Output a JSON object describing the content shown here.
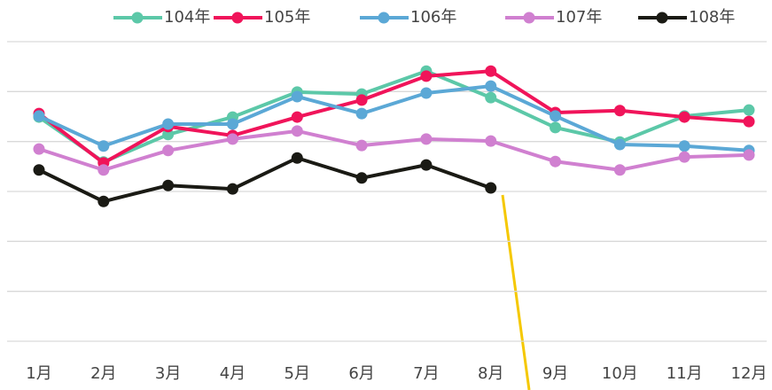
{
  "chart_data": {
    "type": "line",
    "categories": [
      "1月",
      "2月",
      "3月",
      "4月",
      "5月",
      "6月",
      "7月",
      "8月",
      "9月",
      "10月",
      "11月",
      "12月"
    ],
    "series": [
      {
        "name": "104年",
        "color": "#5cc8a8",
        "values": [
          4.49,
          3.59,
          4.14,
          4.49,
          4.99,
          4.95,
          5.41,
          4.88,
          4.28,
          3.99,
          4.51,
          4.63
        ]
      },
      {
        "name": "105年",
        "color": "#f0145a",
        "values": [
          4.56,
          3.57,
          4.3,
          4.12,
          4.49,
          4.83,
          5.31,
          5.41,
          4.58,
          4.62,
          4.49,
          4.4
        ]
      },
      {
        "name": "106年",
        "color": "#5ba8d6",
        "values": [
          4.51,
          3.91,
          4.35,
          4.35,
          4.9,
          4.56,
          4.97,
          5.11,
          4.51,
          3.94,
          3.91,
          3.82
        ]
      },
      {
        "name": "107年",
        "color": "#d080d0",
        "values": [
          3.85,
          3.43,
          3.82,
          4.05,
          4.21,
          3.92,
          4.05,
          4.01,
          3.6,
          3.43,
          3.69,
          3.73
        ]
      },
      {
        "name": "108年",
        "color": "#1a1a14",
        "values": [
          3.43,
          2.8,
          3.12,
          3.05,
          3.67,
          3.27,
          3.53,
          3.07,
          null,
          null,
          null,
          null
        ]
      }
    ],
    "ylim": [
      0,
      6
    ],
    "yticks": [
      0,
      1,
      2,
      3,
      4,
      5,
      6
    ],
    "grid": true,
    "legend": "top"
  }
}
